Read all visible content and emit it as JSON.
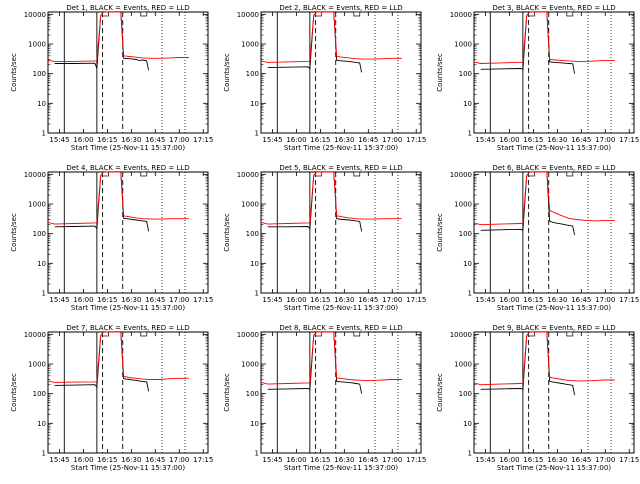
{
  "chart_data": [
    {
      "type": "line",
      "title": "Det  1, BLACK = Events, RED = LLD",
      "xlabel": "Start Time (25-Nov-11 15:37:00)",
      "ylabel": "Counts/sec",
      "yscale": "log",
      "ylim": [
        1,
        12000
      ],
      "xlim": [
        15.63,
        17.3
      ],
      "x_tick_labels": [
        "15:45",
        "16:00",
        "16:15",
        "16:30",
        "16:45",
        "17:00",
        "17:15"
      ],
      "y_tick_labels": [
        "1",
        "10",
        "100",
        "1000",
        "10000"
      ],
      "series": [
        {
          "name": "BLACK = Events",
          "color": "#000000",
          "x": [
            15.7,
            15.9,
            16.12,
            16.14,
            16.18,
            16.21,
            16.24,
            16.3,
            16.39,
            16.42,
            16.48,
            16.55,
            16.58,
            16.62,
            16.66,
            16.68
          ],
          "y": [
            220,
            220,
            225,
            150,
            9000,
            12000,
            12000,
            12000,
            12000,
            330,
            320,
            300,
            280,
            290,
            270,
            130
          ]
        },
        {
          "name": "RED = LLD",
          "color": "#ff0000",
          "x": [
            15.63,
            15.7,
            15.9,
            16.12,
            16.14,
            16.18,
            16.21,
            16.24,
            16.3,
            16.39,
            16.42,
            16.48,
            16.55,
            16.62,
            16.7,
            16.8,
            16.9,
            17.0,
            17.1
          ],
          "y": [
            280,
            260,
            260,
            270,
            280,
            9000,
            12000,
            12000,
            12000,
            12000,
            400,
            380,
            360,
            340,
            330,
            330,
            340,
            350,
            350
          ]
        }
      ]
    },
    {
      "type": "line",
      "title": "Det  2, BLACK = Events, RED = LLD",
      "xlabel": "Start Time (25-Nov-11 15:37:00)",
      "ylabel": "Counts/sec",
      "yscale": "log",
      "ylim": [
        1,
        12000
      ],
      "xlim": [
        15.63,
        17.3
      ],
      "x_tick_labels": [
        "15:45",
        "16:00",
        "16:15",
        "16:30",
        "16:45",
        "17:00",
        "17:15"
      ],
      "y_tick_labels": [
        "1",
        "10",
        "100",
        "1000",
        "10000"
      ],
      "series": [
        {
          "name": "BLACK = Events",
          "color": "#000000",
          "x": [
            15.7,
            15.9,
            16.12,
            16.14,
            16.18,
            16.21,
            16.24,
            16.3,
            16.39,
            16.42,
            16.48,
            16.55,
            16.58,
            16.62,
            16.66,
            16.68
          ],
          "y": [
            160,
            165,
            170,
            150,
            9000,
            12000,
            12000,
            12000,
            12000,
            280,
            270,
            260,
            250,
            240,
            230,
            110
          ]
        },
        {
          "name": "RED = LLD",
          "color": "#ff0000",
          "x": [
            15.63,
            15.7,
            15.9,
            16.12,
            16.14,
            16.18,
            16.21,
            16.24,
            16.3,
            16.39,
            16.42,
            16.48,
            16.55,
            16.62,
            16.7,
            16.8,
            16.9,
            17.0,
            17.1
          ],
          "y": [
            270,
            240,
            250,
            260,
            270,
            9000,
            12000,
            12000,
            12000,
            12000,
            380,
            360,
            340,
            320,
            310,
            310,
            320,
            330,
            330
          ]
        }
      ]
    },
    {
      "type": "line",
      "title": "Det  3, BLACK = Events, RED = LLD",
      "xlabel": "Start Time (25-Nov-11 15:37:00)",
      "ylabel": "Counts/sec",
      "yscale": "log",
      "ylim": [
        1,
        12000
      ],
      "xlim": [
        15.63,
        17.3
      ],
      "x_tick_labels": [
        "15:45",
        "16:00",
        "16:15",
        "16:30",
        "16:45",
        "17:00",
        "17:15"
      ],
      "y_tick_labels": [
        "1",
        "10",
        "100",
        "1000",
        "10000"
      ],
      "series": [
        {
          "name": "BLACK = Events",
          "color": "#000000",
          "x": [
            15.7,
            15.9,
            16.12,
            16.14,
            16.18,
            16.21,
            16.24,
            16.3,
            16.39,
            16.42,
            16.48,
            16.55,
            16.58,
            16.62,
            16.66,
            16.68
          ],
          "y": [
            140,
            145,
            150,
            140,
            9000,
            12000,
            12000,
            12000,
            12000,
            250,
            240,
            230,
            225,
            220,
            215,
            100
          ]
        },
        {
          "name": "RED = LLD",
          "color": "#ff0000",
          "x": [
            15.63,
            15.7,
            15.9,
            16.12,
            16.14,
            16.18,
            16.21,
            16.24,
            16.3,
            16.39,
            16.42,
            16.48,
            16.55,
            16.62,
            16.7,
            16.8,
            16.9,
            17.0,
            17.1
          ],
          "y": [
            250,
            220,
            230,
            240,
            250,
            9000,
            12000,
            12000,
            12000,
            12000,
            300,
            290,
            280,
            270,
            260,
            260,
            270,
            280,
            280
          ]
        }
      ]
    },
    {
      "type": "line",
      "title": "Det  4, BLACK = Events, RED = LLD",
      "xlabel": "Start Time (25-Nov-11 15:37:00)",
      "ylabel": "Counts/sec",
      "yscale": "log",
      "ylim": [
        1,
        12000
      ],
      "xlim": [
        15.63,
        17.3
      ],
      "x_tick_labels": [
        "15:45",
        "16:00",
        "16:15",
        "16:30",
        "16:45",
        "17:00",
        "17:15"
      ],
      "y_tick_labels": [
        "1",
        "10",
        "100",
        "1000",
        "10000"
      ],
      "series": [
        {
          "name": "BLACK = Events",
          "color": "#000000",
          "x": [
            15.7,
            15.9,
            16.12,
            16.14,
            16.18,
            16.21,
            16.24,
            16.3,
            16.39,
            16.42,
            16.48,
            16.55,
            16.58,
            16.62,
            16.66,
            16.68
          ],
          "y": [
            170,
            175,
            180,
            150,
            9000,
            12000,
            12000,
            12000,
            12000,
            330,
            310,
            290,
            280,
            270,
            260,
            120
          ]
        },
        {
          "name": "RED = LLD",
          "color": "#ff0000",
          "x": [
            15.63,
            15.7,
            15.9,
            16.12,
            16.14,
            16.18,
            16.21,
            16.24,
            16.3,
            16.39,
            16.42,
            16.48,
            16.55,
            16.62,
            16.7,
            16.8,
            16.9,
            17.0,
            17.1
          ],
          "y": [
            240,
            210,
            220,
            230,
            240,
            9000,
            12000,
            12000,
            12000,
            12000,
            400,
            370,
            340,
            320,
            310,
            310,
            320,
            320,
            320
          ]
        }
      ]
    },
    {
      "type": "line",
      "title": "Det  5, BLACK = Events, RED = LLD",
      "xlabel": "Start Time (25-Nov-11 15:37:00)",
      "ylabel": "Counts/sec",
      "yscale": "log",
      "ylim": [
        1,
        12000
      ],
      "xlim": [
        15.63,
        17.3
      ],
      "x_tick_labels": [
        "15:45",
        "16:00",
        "16:15",
        "16:30",
        "16:45",
        "17:00",
        "17:15"
      ],
      "y_tick_labels": [
        "1",
        "10",
        "100",
        "1000",
        "10000"
      ],
      "series": [
        {
          "name": "BLACK = Events",
          "color": "#000000",
          "x": [
            15.7,
            15.9,
            16.12,
            16.14,
            16.18,
            16.21,
            16.24,
            16.3,
            16.39,
            16.42,
            16.48,
            16.55,
            16.58,
            16.62,
            16.66,
            16.68
          ],
          "y": [
            170,
            170,
            175,
            150,
            9000,
            12000,
            12000,
            12000,
            12000,
            320,
            300,
            290,
            280,
            270,
            260,
            120
          ]
        },
        {
          "name": "RED = LLD",
          "color": "#ff0000",
          "x": [
            15.63,
            15.7,
            15.9,
            16.12,
            16.14,
            16.18,
            16.21,
            16.24,
            16.3,
            16.39,
            16.42,
            16.48,
            16.55,
            16.62,
            16.7,
            16.8,
            16.9,
            17.0,
            17.1
          ],
          "y": [
            240,
            210,
            220,
            230,
            240,
            9000,
            12000,
            12000,
            12000,
            12000,
            400,
            370,
            340,
            320,
            310,
            310,
            320,
            320,
            320
          ]
        }
      ]
    },
    {
      "type": "line",
      "title": "Det  6, BLACK = Events, RED = LLD",
      "xlabel": "Start Time (25-Nov-11 15:37:00)",
      "ylabel": "Counts/sec",
      "yscale": "log",
      "ylim": [
        1,
        12000
      ],
      "xlim": [
        15.63,
        17.3
      ],
      "x_tick_labels": [
        "15:45",
        "16:00",
        "16:15",
        "16:30",
        "16:45",
        "17:00",
        "17:15"
      ],
      "y_tick_labels": [
        "1",
        "10",
        "100",
        "1000",
        "10000"
      ],
      "series": [
        {
          "name": "BLACK = Events",
          "color": "#000000",
          "x": [
            15.7,
            15.9,
            16.12,
            16.14,
            16.18,
            16.21,
            16.24,
            16.3,
            16.39,
            16.42,
            16.48,
            16.55,
            16.58,
            16.62,
            16.66,
            16.68
          ],
          "y": [
            130,
            135,
            140,
            130,
            9000,
            12000,
            12000,
            12000,
            12000,
            260,
            230,
            210,
            200,
            190,
            180,
            90
          ]
        },
        {
          "name": "RED = LLD",
          "color": "#ff0000",
          "x": [
            15.63,
            15.7,
            15.9,
            16.12,
            16.14,
            16.18,
            16.21,
            16.24,
            16.3,
            16.39,
            16.42,
            16.48,
            16.55,
            16.62,
            16.7,
            16.8,
            16.9,
            17.0,
            17.1
          ],
          "y": [
            230,
            200,
            210,
            220,
            230,
            9000,
            12000,
            12000,
            12000,
            12000,
            600,
            500,
            400,
            330,
            300,
            280,
            270,
            280,
            280
          ]
        }
      ]
    },
    {
      "type": "line",
      "title": "Det  7, BLACK = Events, RED = LLD",
      "xlabel": "Start Time (25-Nov-11 15:37:00)",
      "ylabel": "Counts/sec",
      "yscale": "log",
      "ylim": [
        1,
        12000
      ],
      "xlim": [
        15.63,
        17.3
      ],
      "x_tick_labels": [
        "15:45",
        "16:00",
        "16:15",
        "16:30",
        "16:45",
        "17:00",
        "17:15"
      ],
      "y_tick_labels": [
        "1",
        "10",
        "100",
        "1000",
        "10000"
      ],
      "series": [
        {
          "name": "BLACK = Events",
          "color": "#000000",
          "x": [
            15.7,
            15.9,
            16.12,
            16.14,
            16.18,
            16.21,
            16.24,
            16.3,
            16.39,
            16.42,
            16.48,
            16.55,
            16.58,
            16.62,
            16.66,
            16.68
          ],
          "y": [
            190,
            195,
            200,
            170,
            9000,
            12000,
            12000,
            12000,
            12000,
            320,
            300,
            280,
            270,
            260,
            250,
            120
          ]
        },
        {
          "name": "RED = LLD",
          "color": "#ff0000",
          "x": [
            15.63,
            15.7,
            15.9,
            16.12,
            16.14,
            16.18,
            16.21,
            16.24,
            16.3,
            16.39,
            16.42,
            16.48,
            16.55,
            16.62,
            16.7,
            16.8,
            16.9,
            17.0,
            17.1
          ],
          "y": [
            270,
            240,
            245,
            250,
            260,
            9000,
            12000,
            12000,
            12000,
            12000,
            380,
            350,
            330,
            310,
            300,
            300,
            320,
            330,
            330
          ]
        }
      ]
    },
    {
      "type": "line",
      "title": "Det  8, BLACK = Events, RED = LLD",
      "xlabel": "Start Time (25-Nov-11 15:37:00)",
      "ylabel": "Counts/sec",
      "yscale": "log",
      "ylim": [
        1,
        12000
      ],
      "xlim": [
        15.63,
        17.3
      ],
      "x_tick_labels": [
        "15:45",
        "16:00",
        "16:15",
        "16:30",
        "16:45",
        "17:00",
        "17:15"
      ],
      "y_tick_labels": [
        "1",
        "10",
        "100",
        "1000",
        "10000"
      ],
      "series": [
        {
          "name": "BLACK = Events",
          "color": "#000000",
          "x": [
            15.7,
            15.9,
            16.12,
            16.14,
            16.18,
            16.21,
            16.24,
            16.3,
            16.39,
            16.42,
            16.48,
            16.55,
            16.58,
            16.62,
            16.66,
            16.68
          ],
          "y": [
            140,
            145,
            150,
            140,
            9000,
            12000,
            12000,
            12000,
            12000,
            260,
            250,
            240,
            230,
            220,
            210,
            100
          ]
        },
        {
          "name": "RED = LLD",
          "color": "#ff0000",
          "x": [
            15.63,
            15.7,
            15.9,
            16.12,
            16.14,
            16.18,
            16.21,
            16.24,
            16.3,
            16.39,
            16.42,
            16.48,
            16.55,
            16.62,
            16.7,
            16.8,
            16.9,
            17.0,
            17.1
          ],
          "y": [
            240,
            210,
            220,
            230,
            240,
            9000,
            12000,
            12000,
            12000,
            12000,
            340,
            320,
            300,
            290,
            280,
            280,
            290,
            300,
            300
          ]
        }
      ]
    },
    {
      "type": "line",
      "title": "Det  9, BLACK = Events, RED = LLD",
      "xlabel": "Start Time (25-Nov-11 15:37:00)",
      "ylabel": "Counts/sec",
      "yscale": "log",
      "ylim": [
        1,
        12000
      ],
      "xlim": [
        15.63,
        17.3
      ],
      "x_tick_labels": [
        "15:45",
        "16:00",
        "16:15",
        "16:30",
        "16:45",
        "17:00",
        "17:15"
      ],
      "y_tick_labels": [
        "1",
        "10",
        "100",
        "1000",
        "10000"
      ],
      "series": [
        {
          "name": "BLACK = Events",
          "color": "#000000",
          "x": [
            15.7,
            15.9,
            16.12,
            16.14,
            16.18,
            16.21,
            16.24,
            16.3,
            16.39,
            16.42,
            16.48,
            16.55,
            16.58,
            16.62,
            16.66,
            16.68
          ],
          "y": [
            140,
            145,
            150,
            140,
            9000,
            12000,
            12000,
            12000,
            12000,
            260,
            240,
            220,
            210,
            200,
            190,
            90
          ]
        },
        {
          "name": "RED = LLD",
          "color": "#ff0000",
          "x": [
            15.63,
            15.7,
            15.9,
            16.12,
            16.14,
            16.18,
            16.21,
            16.24,
            16.3,
            16.39,
            16.42,
            16.48,
            16.55,
            16.62,
            16.7,
            16.8,
            16.9,
            17.0,
            17.1
          ],
          "y": [
            230,
            200,
            210,
            220,
            230,
            9000,
            12000,
            12000,
            12000,
            12000,
            350,
            330,
            300,
            280,
            270,
            270,
            280,
            290,
            290
          ]
        }
      ]
    }
  ]
}
